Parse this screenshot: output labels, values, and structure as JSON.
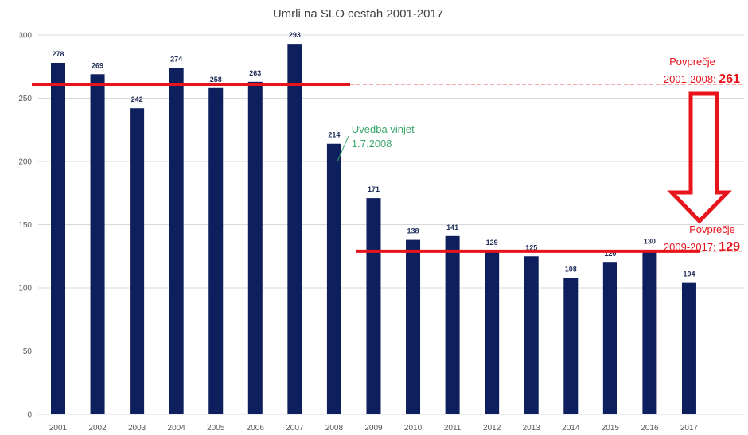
{
  "chart_data": {
    "type": "bar",
    "title": "Umrli na SLO cestah 2001-2017",
    "categories": [
      "2001",
      "2002",
      "2003",
      "2004",
      "2005",
      "2006",
      "2007",
      "2008",
      "2009",
      "2010",
      "2011",
      "2012",
      "2013",
      "2014",
      "2015",
      "2016",
      "2017"
    ],
    "values": [
      278,
      269,
      242,
      274,
      258,
      263,
      293,
      214,
      171,
      138,
      141,
      129,
      125,
      108,
      120,
      130,
      104
    ],
    "ylim": [
      0,
      300
    ],
    "yticks": [
      0,
      50,
      100,
      150,
      200,
      250,
      300
    ],
    "grid": true,
    "bar_color": "#0d1f5c",
    "annotations": {
      "vignette": {
        "line1": "Uvedba vinjet",
        "line2": "1.7.2008",
        "year": "2008",
        "color": "#3aa66a"
      },
      "avg1": {
        "label": "Povprečje",
        "range": "2001-2008: ",
        "value": 261,
        "from": "2001",
        "to": "2007"
      },
      "avg2": {
        "label": "Povprečje",
        "range": "2009-2017: ",
        "value": 129,
        "from": "2009",
        "to": "2016"
      },
      "avg_color": "#e8141c",
      "arrow": "down-arrow"
    }
  }
}
